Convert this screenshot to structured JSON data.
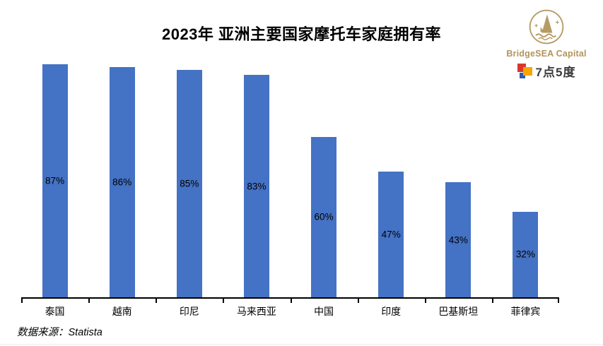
{
  "title": "2023年 亚洲主要国家摩托车家庭拥有率",
  "branding": {
    "company": "BridgeSEA Capital",
    "partner": "7点5度",
    "emblem_icon": "sailboat-circle-icon",
    "gold_color": "#B2945B",
    "partner_text_color": "#3A3A3A",
    "partner_icon_colors": {
      "red": "#D8382C",
      "orange": "#F7A600",
      "blue": "#2F5BA8"
    }
  },
  "source": "数据来源：Statista",
  "chart_data": {
    "type": "bar",
    "title": "2023年 亚洲主要国家摩托车家庭拥有率",
    "categories": [
      "泰国",
      "越南",
      "印尼",
      "马来西亚",
      "中国",
      "印度",
      "巴基斯坦",
      "菲律宾"
    ],
    "values": [
      87,
      86,
      85,
      83,
      60,
      47,
      43,
      32
    ],
    "value_labels": [
      "87%",
      "86%",
      "85%",
      "83%",
      "60%",
      "47%",
      "43%",
      "32%"
    ],
    "xlabel": "",
    "ylabel": "",
    "ylim": [
      0,
      100
    ],
    "unit": "%",
    "bar_color": "#4472C4",
    "value_label_color": "#000000",
    "value_label_position": "inside-center",
    "grid": false,
    "legend": false,
    "y_axis_visible": false,
    "x_axis_visible": true
  }
}
